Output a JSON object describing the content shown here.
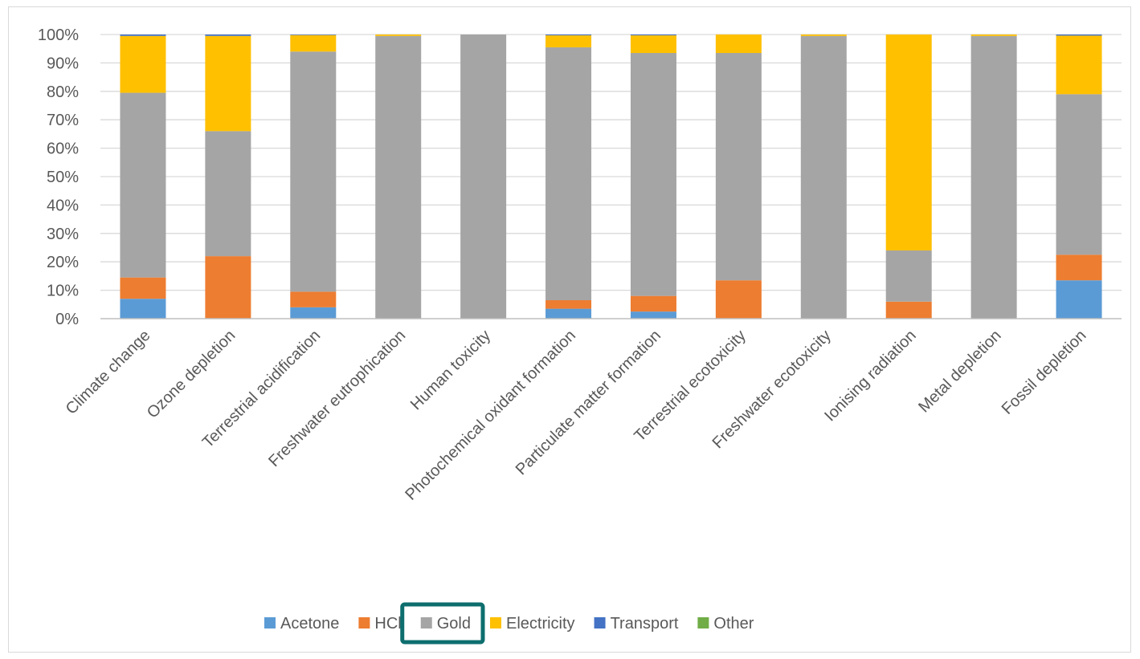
{
  "chart_data": {
    "type": "bar",
    "stacked": true,
    "percent": true,
    "categories": [
      "Climate change",
      "Ozone depletion",
      "Terrestrial acidification",
      "Freshwater eutrophication",
      "Human toxicity",
      "Photochemical oxidant formation",
      "Particulate matter formation",
      "Terrestrial ecotoxicity",
      "Freshwater ecotoxicity",
      "Ionising radiation",
      "Metal depletion",
      "Fossil depletion"
    ],
    "series": [
      {
        "name": "Acetone",
        "color": "#5b9bd5",
        "values": [
          7.0,
          0.0,
          4.0,
          0.0,
          0.0,
          3.5,
          2.5,
          0.0,
          0.0,
          0.0,
          0.0,
          13.5
        ]
      },
      {
        "name": "HCl",
        "color": "#ed7d31",
        "values": [
          7.5,
          22.0,
          5.5,
          0.0,
          0.0,
          3.0,
          5.5,
          13.5,
          0.0,
          6.0,
          0.0,
          9.0
        ]
      },
      {
        "name": "Gold",
        "color": "#a5a5a5",
        "values": [
          65.0,
          44.0,
          84.5,
          99.5,
          100.0,
          89.0,
          85.5,
          80.0,
          99.5,
          18.0,
          99.5,
          56.5
        ]
      },
      {
        "name": "Electricity",
        "color": "#ffc000",
        "values": [
          20.0,
          33.5,
          5.8,
          0.5,
          0.0,
          4.2,
          6.2,
          6.5,
          0.5,
          76.0,
          0.5,
          20.6
        ]
      },
      {
        "name": "Transport",
        "color": "#4472c4",
        "values": [
          0.5,
          0.5,
          0.2,
          0.0,
          0.0,
          0.3,
          0.3,
          0.0,
          0.0,
          0.0,
          0.0,
          0.4
        ]
      },
      {
        "name": "Other",
        "color": "#70ad47",
        "values": [
          0,
          0,
          0,
          0,
          0,
          0,
          0,
          0,
          0,
          0,
          0,
          0
        ]
      }
    ],
    "ylim": [
      0,
      100
    ],
    "yticks": [
      "0%",
      "10%",
      "20%",
      "30%",
      "40%",
      "50%",
      "60%",
      "70%",
      "80%",
      "90%",
      "100%"
    ],
    "grid": true,
    "legend_position": "bottom",
    "legend_highlight": "Gold",
    "highlight_color": "#0e6e6e",
    "title": "",
    "xlabel": "",
    "ylabel": ""
  }
}
